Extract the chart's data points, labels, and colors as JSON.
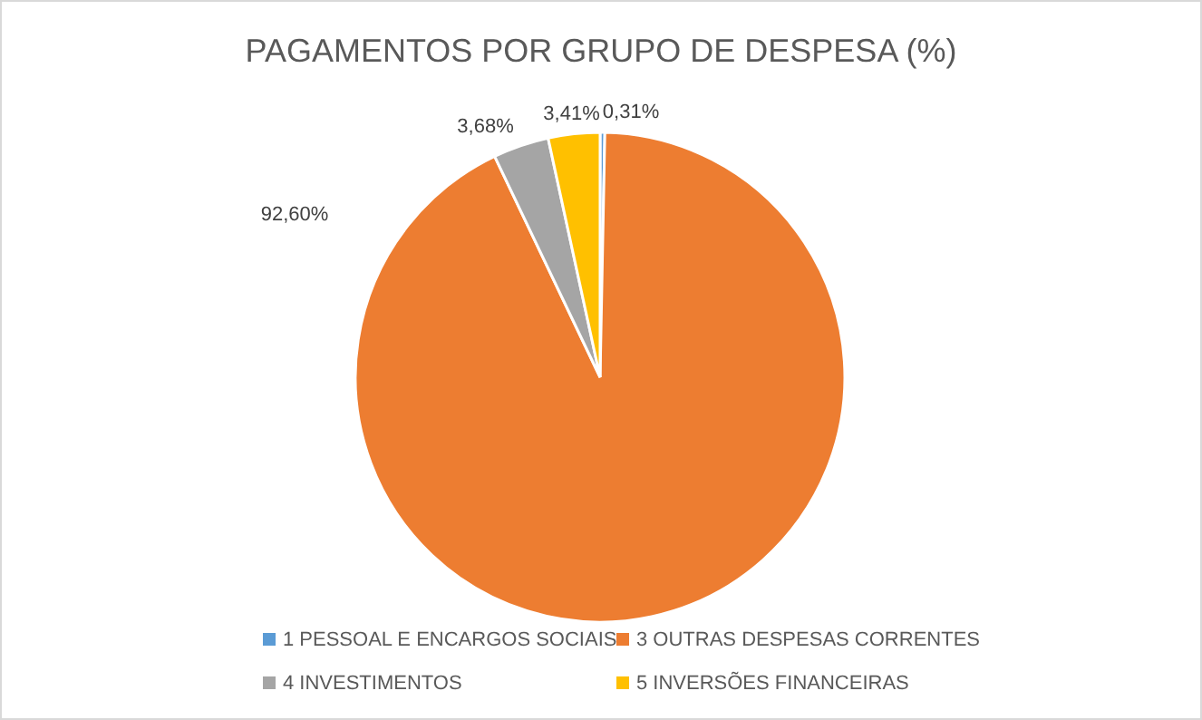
{
  "chart_data": {
    "type": "pie",
    "title": "PAGAMENTOS POR GRUPO DE DESPESA (%)",
    "categories": [
      "1 PESSOAL E ENCARGOS SOCIAIS",
      "3 OUTRAS DESPESAS CORRENTES",
      "4 INVESTIMENTOS",
      "5 INVERSÕES FINANCEIRAS"
    ],
    "values": [
      0.31,
      92.6,
      3.68,
      3.41
    ],
    "value_labels": [
      "0,31%",
      "92,60%",
      "3,68%",
      "3,41%"
    ],
    "colors": [
      "#5b9bd5",
      "#ed7d31",
      "#a5a5a5",
      "#ffc000"
    ],
    "legend": "bottom"
  }
}
